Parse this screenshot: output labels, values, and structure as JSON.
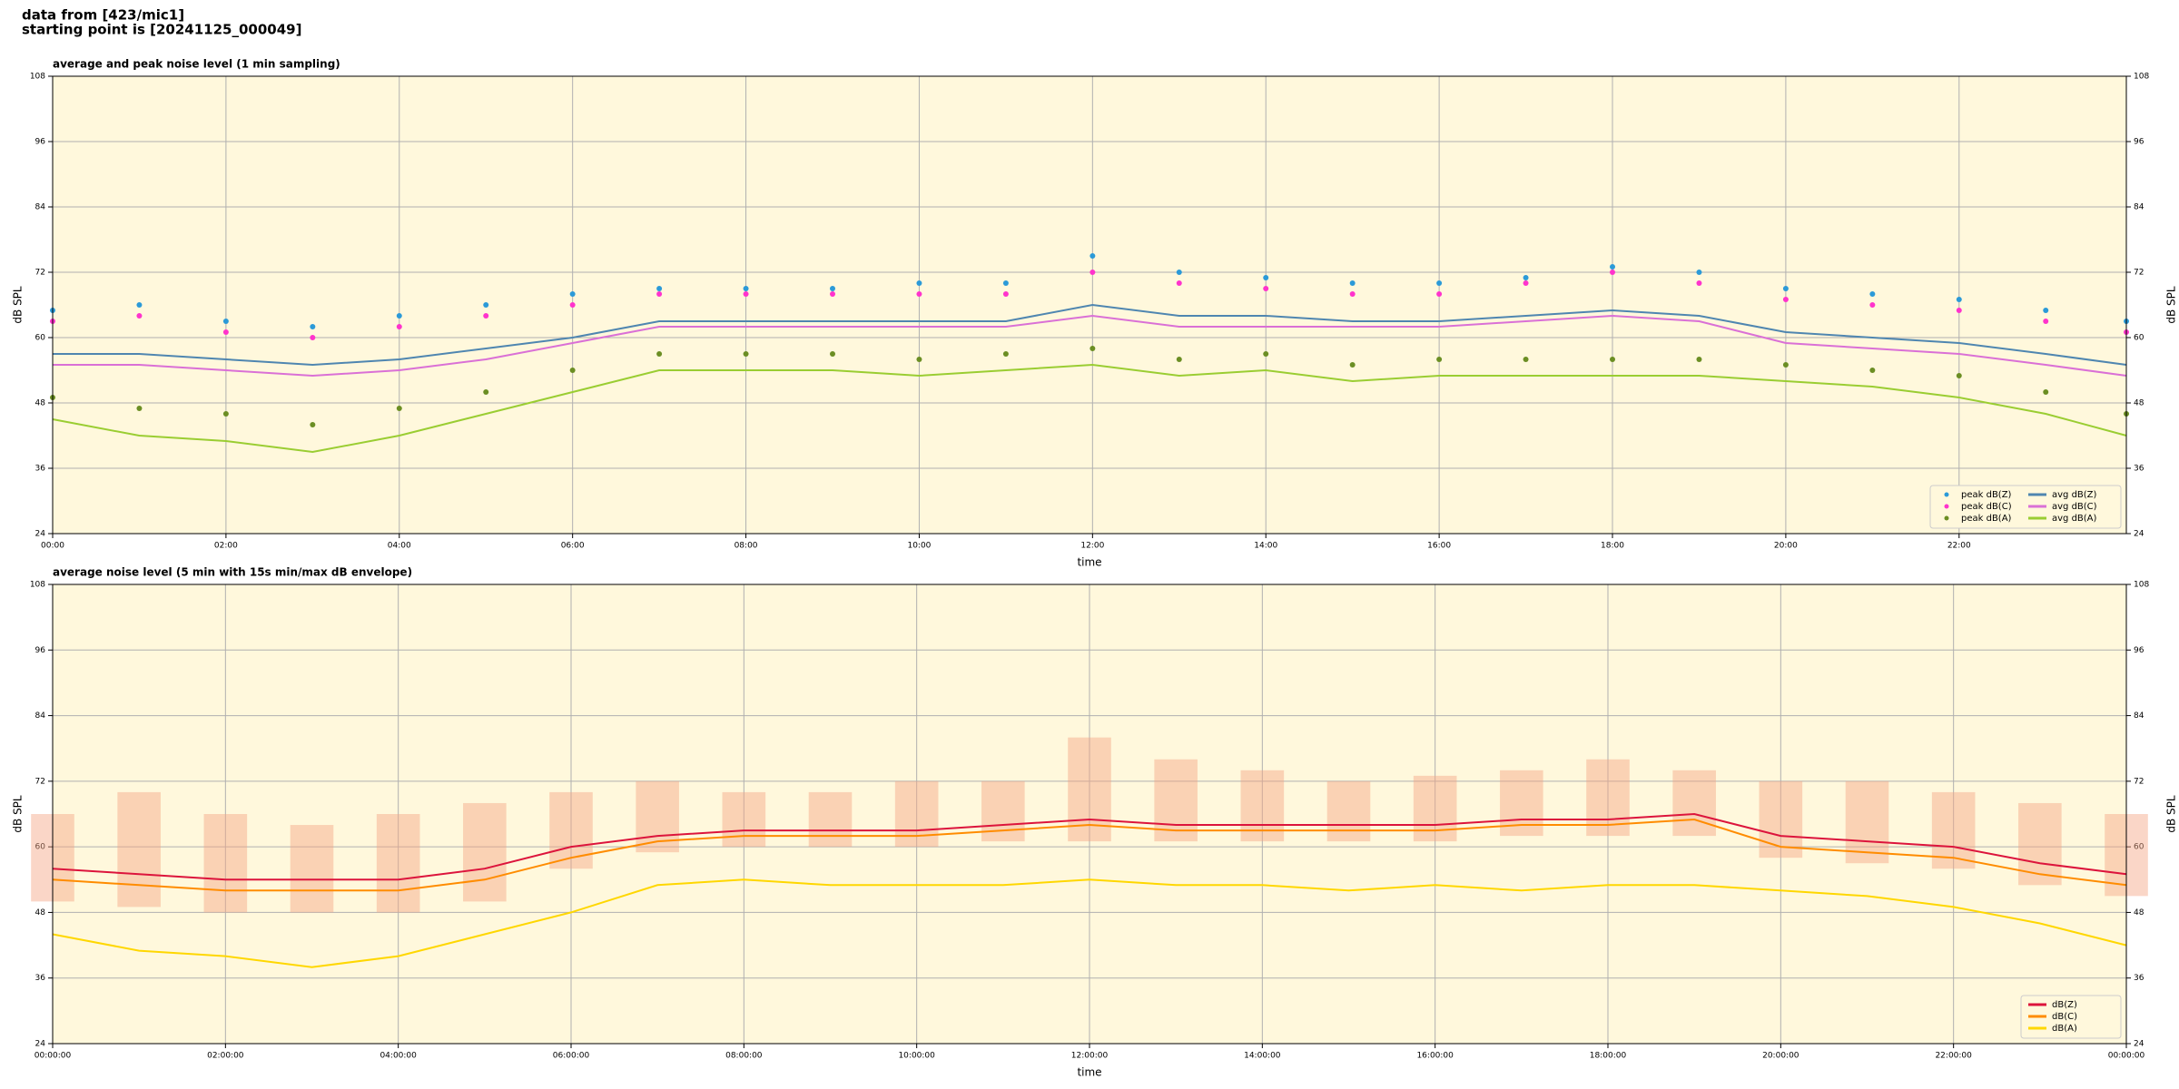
{
  "header": {
    "line1": "data from [423/mic1]",
    "line2": "starting point is [20241125_000049]"
  },
  "chart_data": [
    {
      "type": "line",
      "title": "average and peak noise level (1 min sampling)",
      "xlabel": "time",
      "ylabel": "dB SPL",
      "xlim": [
        0,
        23.93
      ],
      "ylim": [
        24,
        108
      ],
      "grid": true,
      "legend": "lower right",
      "legend_columns": 2,
      "background": "#fff8dc",
      "yticks": [
        24,
        36,
        48,
        60,
        72,
        84,
        96,
        108
      ],
      "xticks": [
        {
          "value": 0,
          "label": "00:00"
        },
        {
          "value": 2,
          "label": "02:00"
        },
        {
          "value": 4,
          "label": "04:00"
        },
        {
          "value": 6,
          "label": "06:00"
        },
        {
          "value": 8,
          "label": "08:00"
        },
        {
          "value": 10,
          "label": "10:00"
        },
        {
          "value": 12,
          "label": "12:00"
        },
        {
          "value": 14,
          "label": "14:00"
        },
        {
          "value": 16,
          "label": "16:00"
        },
        {
          "value": 18,
          "label": "18:00"
        },
        {
          "value": 20,
          "label": "20:00"
        },
        {
          "value": 22,
          "label": "22:00"
        }
      ],
      "x": [
        0,
        1,
        2,
        3,
        4,
        5,
        6,
        7,
        8,
        9,
        10,
        11,
        12,
        13,
        14,
        15,
        16,
        17,
        18,
        19,
        20,
        21,
        22,
        23,
        23.93
      ],
      "series": [
        {
          "name": "peak dB(Z)",
          "color": "#2b9ad8",
          "style": "markers",
          "values": [
            65,
            66,
            63,
            62,
            64,
            66,
            68,
            69,
            69,
            69,
            70,
            70,
            75,
            72,
            71,
            70,
            70,
            71,
            73,
            72,
            69,
            68,
            67,
            65,
            63
          ]
        },
        {
          "name": "peak dB(C)",
          "color": "#ff33cc",
          "style": "markers",
          "values": [
            63,
            64,
            61,
            60,
            62,
            64,
            66,
            68,
            68,
            68,
            68,
            68,
            72,
            70,
            69,
            68,
            68,
            70,
            72,
            70,
            67,
            66,
            65,
            63,
            61
          ]
        },
        {
          "name": "peak dB(A)",
          "color": "#6b8e23",
          "style": "markers",
          "values": [
            49,
            47,
            46,
            44,
            47,
            50,
            54,
            57,
            57,
            57,
            56,
            57,
            58,
            56,
            57,
            55,
            56,
            56,
            56,
            56,
            55,
            54,
            53,
            50,
            46
          ]
        },
        {
          "name": "avg dB(Z)",
          "color": "#4f86b0",
          "style": "line",
          "values": [
            57,
            57,
            56,
            55,
            56,
            58,
            60,
            63,
            63,
            63,
            63,
            63,
            66,
            64,
            64,
            63,
            63,
            64,
            65,
            64,
            61,
            60,
            59,
            57,
            55
          ]
        },
        {
          "name": "avg dB(C)",
          "color": "#da70d6",
          "style": "line",
          "values": [
            55,
            55,
            54,
            53,
            54,
            56,
            59,
            62,
            62,
            62,
            62,
            62,
            64,
            62,
            62,
            62,
            62,
            63,
            64,
            63,
            59,
            58,
            57,
            55,
            53
          ]
        },
        {
          "name": "avg dB(A)",
          "color": "#9acd32",
          "style": "line",
          "values": [
            45,
            42,
            41,
            39,
            42,
            46,
            50,
            54,
            54,
            54,
            53,
            54,
            55,
            53,
            54,
            52,
            53,
            53,
            53,
            53,
            52,
            51,
            49,
            46,
            42
          ]
        }
      ]
    },
    {
      "type": "line",
      "title": "average noise level (5 min with 15s min/max dB envelope)",
      "xlabel": "time",
      "ylabel": "dB SPL",
      "xlim": [
        0,
        24
      ],
      "ylim": [
        24,
        108
      ],
      "grid": true,
      "legend": "lower right",
      "legend_columns": 1,
      "background": "#fff8dc",
      "yticks": [
        24,
        36,
        48,
        60,
        72,
        84,
        96,
        108
      ],
      "xticks": [
        {
          "value": 0,
          "label": "00:00:00"
        },
        {
          "value": 2,
          "label": "02:00:00"
        },
        {
          "value": 4,
          "label": "04:00:00"
        },
        {
          "value": 6,
          "label": "06:00:00"
        },
        {
          "value": 8,
          "label": "08:00:00"
        },
        {
          "value": 10,
          "label": "10:00:00"
        },
        {
          "value": 12,
          "label": "12:00:00"
        },
        {
          "value": 14,
          "label": "14:00:00"
        },
        {
          "value": 16,
          "label": "16:00:00"
        },
        {
          "value": 18,
          "label": "18:00:00"
        },
        {
          "value": 20,
          "label": "20:00:00"
        },
        {
          "value": 22,
          "label": "22:00:00"
        },
        {
          "value": 24,
          "label": "00:00:00"
        }
      ],
      "x": [
        0,
        1,
        2,
        3,
        4,
        5,
        6,
        7,
        8,
        9,
        10,
        11,
        12,
        13,
        14,
        15,
        16,
        17,
        18,
        19,
        20,
        21,
        22,
        23,
        24
      ],
      "envelope": {
        "color": "#f4a582",
        "lower": [
          50,
          49,
          48,
          48,
          48,
          50,
          56,
          59,
          60,
          60,
          60,
          61,
          61,
          61,
          61,
          61,
          61,
          62,
          62,
          62,
          58,
          57,
          56,
          53,
          51
        ],
        "upper": [
          66,
          70,
          66,
          64,
          66,
          68,
          70,
          72,
          70,
          70,
          72,
          72,
          80,
          76,
          74,
          72,
          73,
          74,
          76,
          74,
          72,
          72,
          70,
          68,
          66
        ]
      },
      "series": [
        {
          "name": "dB(Z)",
          "color": "#dc143c",
          "style": "line",
          "values": [
            56,
            55,
            54,
            54,
            54,
            56,
            60,
            62,
            63,
            63,
            63,
            64,
            65,
            64,
            64,
            64,
            64,
            65,
            65,
            66,
            62,
            61,
            60,
            57,
            55
          ]
        },
        {
          "name": "dB(C)",
          "color": "#ff8c00",
          "style": "line",
          "values": [
            54,
            53,
            52,
            52,
            52,
            54,
            58,
            61,
            62,
            62,
            62,
            63,
            64,
            63,
            63,
            63,
            63,
            64,
            64,
            65,
            60,
            59,
            58,
            55,
            53
          ]
        },
        {
          "name": "dB(A)",
          "color": "#ffd700",
          "style": "line",
          "values": [
            44,
            41,
            40,
            38,
            40,
            44,
            48,
            53,
            54,
            53,
            53,
            53,
            54,
            53,
            53,
            52,
            53,
            52,
            53,
            53,
            52,
            51,
            49,
            46,
            42
          ]
        }
      ]
    }
  ]
}
